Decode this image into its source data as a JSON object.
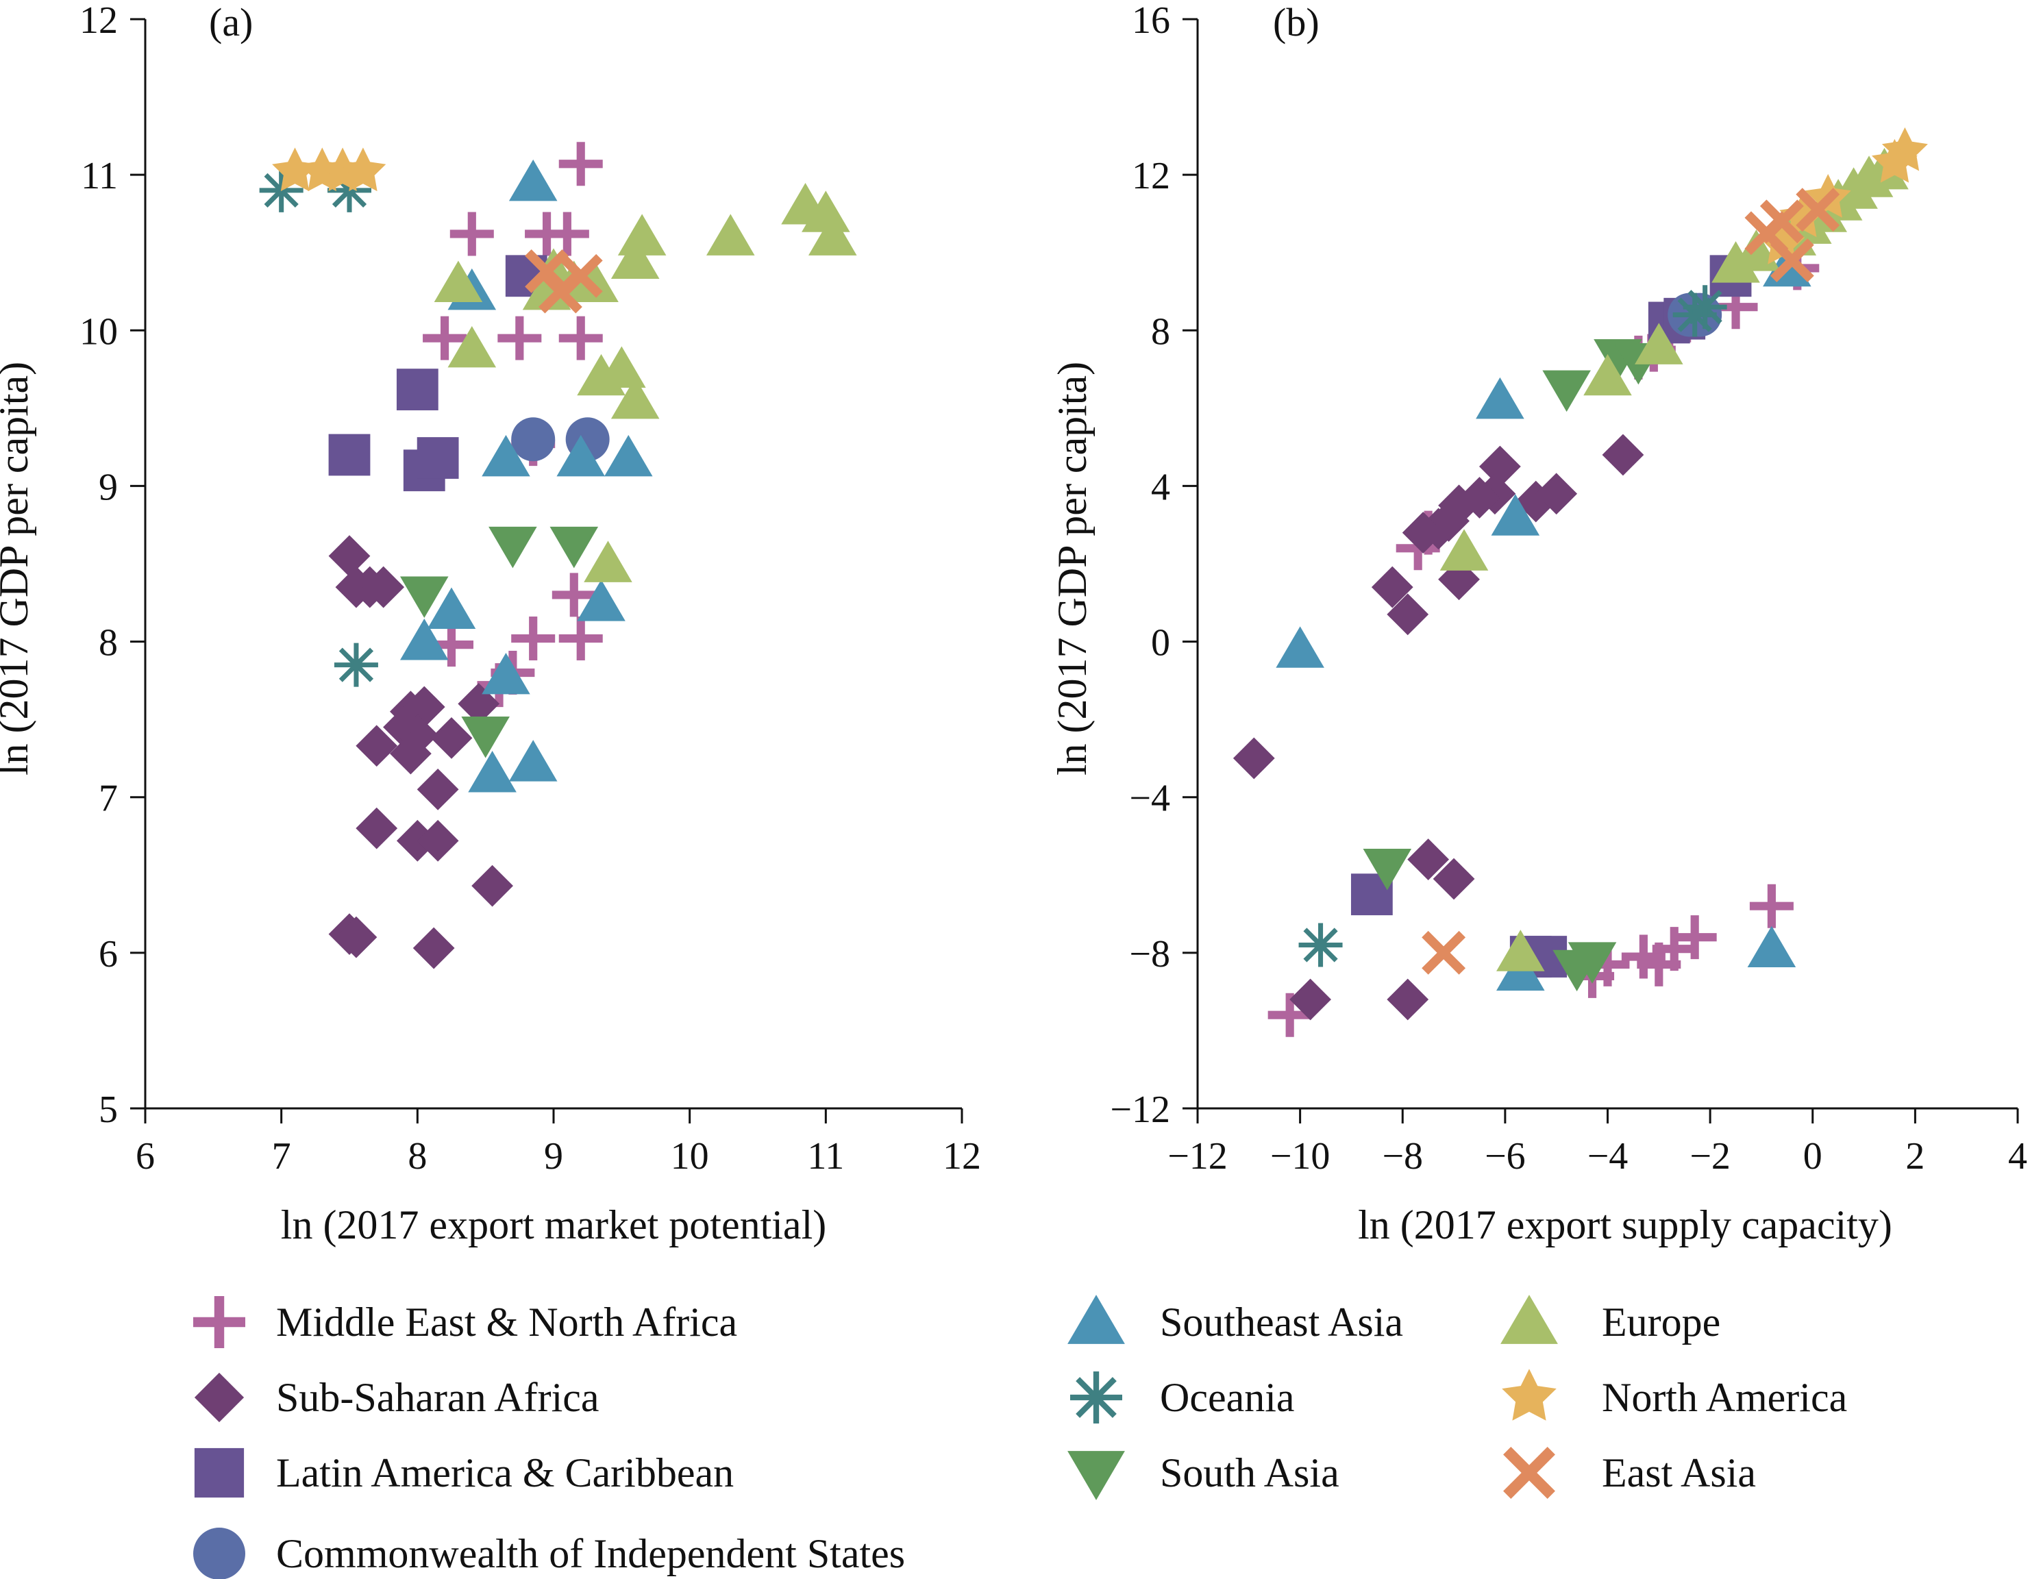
{
  "legend": [
    {
      "key": "mena",
      "label": "Middle East & North Africa",
      "marker": "plus",
      "color": "#b0659d"
    },
    {
      "key": "ssa",
      "label": "Sub-Saharan Africa",
      "marker": "diamond",
      "color": "#6f3f73"
    },
    {
      "key": "lac",
      "label": "Latin America & Caribbean",
      "marker": "square",
      "color": "#675393"
    },
    {
      "key": "cis",
      "label": "Commonwealth of Independent States",
      "marker": "circle",
      "color": "#5a6ea7"
    },
    {
      "key": "sea",
      "label": "Southeast Asia",
      "marker": "triangle-up",
      "color": "#4b93b5"
    },
    {
      "key": "oce",
      "label": "Oceania",
      "marker": "asterisk",
      "color": "#3f8082"
    },
    {
      "key": "sa",
      "label": "South Asia",
      "marker": "triangle-down",
      "color": "#5f9a5a"
    },
    {
      "key": "eur",
      "label": "Europe",
      "marker": "triangle-up",
      "color": "#a8bf6a"
    },
    {
      "key": "na",
      "label": "North America",
      "marker": "star",
      "color": "#e6b35c"
    },
    {
      "key": "ea",
      "label": "East Asia",
      "marker": "x",
      "color": "#e08a5e"
    }
  ],
  "chart_data": [
    {
      "type": "scatter",
      "panel_label": "(a)",
      "xlabel": "ln (2017 export market potential)",
      "ylabel": "ln (2017 GDP per capita)",
      "xlim": [
        6,
        12
      ],
      "ylim": [
        5,
        12
      ],
      "xticks": [
        6,
        7,
        8,
        9,
        10,
        11,
        12
      ],
      "yticks": [
        5,
        6,
        7,
        8,
        9,
        10,
        11,
        12
      ],
      "xtick_labels": [
        "6",
        "7",
        "8",
        "9",
        "10",
        "11",
        "12"
      ],
      "ytick_labels": [
        "5",
        "6",
        "7",
        "8",
        "9",
        "10",
        "11",
        "12"
      ],
      "series": [
        {
          "key": "mena",
          "points": [
            [
              9.2,
              11.07
            ],
            [
              8.4,
              10.62
            ],
            [
              8.95,
              10.62
            ],
            [
              9.1,
              10.62
            ],
            [
              8.2,
              9.95
            ],
            [
              8.75,
              9.95
            ],
            [
              9.2,
              9.95
            ],
            [
              8.85,
              9.27
            ],
            [
              9.15,
              8.3
            ],
            [
              8.85,
              8.02
            ],
            [
              9.2,
              8.02
            ],
            [
              8.25,
              7.98
            ],
            [
              8.7,
              7.8
            ],
            [
              8.6,
              7.72
            ]
          ]
        },
        {
          "key": "ssa",
          "points": [
            [
              7.5,
              8.55
            ],
            [
              7.55,
              8.35
            ],
            [
              7.65,
              8.35
            ],
            [
              7.75,
              8.35
            ],
            [
              7.95,
              7.55
            ],
            [
              8.05,
              7.58
            ],
            [
              7.9,
              7.45
            ],
            [
              8.0,
              7.4
            ],
            [
              7.7,
              7.33
            ],
            [
              7.95,
              7.28
            ],
            [
              8.25,
              7.38
            ],
            [
              8.45,
              7.6
            ],
            [
              8.15,
              7.05
            ],
            [
              7.7,
              6.8
            ],
            [
              8.0,
              6.72
            ],
            [
              8.15,
              6.72
            ],
            [
              8.55,
              6.43
            ],
            [
              7.5,
              6.12
            ],
            [
              7.55,
              6.1
            ],
            [
              8.12,
              6.03
            ]
          ]
        },
        {
          "key": "lac",
          "points": [
            [
              8.8,
              10.35
            ],
            [
              8.0,
              9.62
            ],
            [
              7.5,
              9.2
            ],
            [
              8.05,
              9.1
            ],
            [
              8.15,
              9.18
            ]
          ]
        },
        {
          "key": "cis",
          "points": [
            [
              8.85,
              9.3
            ],
            [
              9.25,
              9.3
            ]
          ]
        },
        {
          "key": "sea",
          "points": [
            [
              8.85,
              10.95
            ],
            [
              8.4,
              10.25
            ],
            [
              8.65,
              9.18
            ],
            [
              9.2,
              9.18
            ],
            [
              9.55,
              9.18
            ],
            [
              8.25,
              8.2
            ],
            [
              8.05,
              8.0
            ],
            [
              9.35,
              8.25
            ],
            [
              8.65,
              7.78
            ],
            [
              8.55,
              7.15
            ],
            [
              8.85,
              7.22
            ]
          ]
        },
        {
          "key": "oce",
          "points": [
            [
              7.0,
              10.9
            ],
            [
              7.5,
              10.9
            ],
            [
              7.55,
              7.85
            ]
          ]
        },
        {
          "key": "sa",
          "points": [
            [
              8.05,
              8.3
            ],
            [
              8.7,
              8.62
            ],
            [
              9.15,
              8.62
            ],
            [
              8.5,
              7.4
            ]
          ]
        },
        {
          "key": "eur",
          "points": [
            [
              10.85,
              10.8
            ],
            [
              11.0,
              10.75
            ],
            [
              11.05,
              10.6
            ],
            [
              10.3,
              10.6
            ],
            [
              9.65,
              10.6
            ],
            [
              9.6,
              10.45
            ],
            [
              8.3,
              10.3
            ],
            [
              9.0,
              10.38
            ],
            [
              9.05,
              10.3
            ],
            [
              9.15,
              10.3
            ],
            [
              9.3,
              10.3
            ],
            [
              8.95,
              10.25
            ],
            [
              8.4,
              9.88
            ],
            [
              9.35,
              9.7
            ],
            [
              9.5,
              9.75
            ],
            [
              9.6,
              9.55
            ],
            [
              9.4,
              8.5
            ]
          ]
        },
        {
          "key": "na",
          "points": [
            [
              7.1,
              11.02
            ],
            [
              7.3,
              11.02
            ],
            [
              7.45,
              11.02
            ],
            [
              7.6,
              11.02
            ]
          ]
        },
        {
          "key": "ea",
          "points": [
            [
              8.95,
              10.38
            ],
            [
              9.2,
              10.35
            ],
            [
              9.05,
              10.25
            ]
          ]
        }
      ]
    },
    {
      "type": "scatter",
      "panel_label": "(b)",
      "xlabel": "ln (2017 export supply capacity)",
      "ylabel": "ln (2017 GDP per capita)",
      "xlim": [
        -12,
        4
      ],
      "ylim": [
        -12,
        16
      ],
      "xticks": [
        -12,
        -10,
        -8,
        -6,
        -4,
        -2,
        0,
        2,
        4
      ],
      "yticks": [
        -12,
        -8,
        -4,
        0,
        4,
        8,
        12,
        16
      ],
      "xtick_labels": [
        "−12",
        "−10",
        "−8",
        "−6",
        "−4",
        "−2",
        "0",
        "2",
        "4"
      ],
      "ytick_labels": [
        "−12",
        "−8",
        "−4",
        "0",
        "4",
        "8",
        "12",
        "16"
      ],
      "series": [
        {
          "key": "mena",
          "points": [
            [
              -0.5,
              10.5
            ],
            [
              -0.3,
              9.6
            ],
            [
              -1.5,
              8.6
            ],
            [
              -2.8,
              7.8
            ],
            [
              -3.1,
              7.5
            ],
            [
              -3.4,
              7.3
            ],
            [
              -7.7,
              2.4
            ],
            [
              -7.5,
              2.8
            ],
            [
              -0.8,
              -6.8
            ],
            [
              -10.2,
              -9.6
            ],
            [
              -4.3,
              -8.6
            ],
            [
              -4.0,
              -8.3
            ],
            [
              -3.3,
              -8.1
            ],
            [
              -3.0,
              -8.3
            ],
            [
              -2.7,
              -7.9
            ],
            [
              -2.3,
              -7.6
            ]
          ]
        },
        {
          "key": "ssa",
          "points": [
            [
              -6.1,
              4.5
            ],
            [
              -6.2,
              3.8
            ],
            [
              -6.5,
              3.7
            ],
            [
              -6.9,
              3.5
            ],
            [
              -7.1,
              3.1
            ],
            [
              -7.3,
              2.9
            ],
            [
              -7.6,
              2.8
            ],
            [
              -5.4,
              3.6
            ],
            [
              -5.0,
              3.8
            ],
            [
              -3.7,
              4.8
            ],
            [
              -8.2,
              1.4
            ],
            [
              -6.9,
              1.6
            ],
            [
              -7.9,
              0.7
            ],
            [
              -10.9,
              -3.0
            ],
            [
              -7.5,
              -5.6
            ],
            [
              -7.0,
              -6.1
            ],
            [
              -7.9,
              -9.2
            ],
            [
              -9.8,
              -9.2
            ]
          ]
        },
        {
          "key": "lac",
          "points": [
            [
              -1.6,
              9.4
            ],
            [
              -2.8,
              8.2
            ],
            [
              -2.5,
              8.3
            ],
            [
              -8.6,
              -6.5
            ],
            [
              -5.5,
              -8.1
            ],
            [
              -5.2,
              -8.1
            ]
          ]
        },
        {
          "key": "cis",
          "points": [
            [
              -2.4,
              8.4
            ],
            [
              -2.2,
              8.4
            ]
          ]
        },
        {
          "key": "sea",
          "points": [
            [
              -0.5,
              9.6
            ],
            [
              -6.1,
              6.2
            ],
            [
              -5.8,
              3.2
            ],
            [
              -10.0,
              -0.2
            ],
            [
              -5.7,
              -8.5
            ],
            [
              -0.8,
              -7.9
            ]
          ]
        },
        {
          "key": "oce",
          "points": [
            [
              -2.3,
              8.4
            ],
            [
              -2.1,
              8.6
            ],
            [
              -9.6,
              -7.8
            ]
          ]
        },
        {
          "key": "sa",
          "points": [
            [
              -4.8,
              6.5
            ],
            [
              -3.8,
              7.3
            ],
            [
              -3.4,
              7.2
            ],
            [
              -8.3,
              -5.8
            ],
            [
              -4.6,
              -8.4
            ],
            [
              -4.3,
              -8.2
            ]
          ]
        },
        {
          "key": "eur",
          "points": [
            [
              1.4,
              12.1
            ],
            [
              1.1,
              11.9
            ],
            [
              0.8,
              11.6
            ],
            [
              0.5,
              11.3
            ],
            [
              0.2,
              11.0
            ],
            [
              -0.1,
              10.7
            ],
            [
              -0.4,
              10.4
            ],
            [
              -1.1,
              10.0
            ],
            [
              -1.5,
              9.7
            ],
            [
              -3.0,
              7.6
            ],
            [
              -4.0,
              6.8
            ],
            [
              -6.8,
              2.3
            ],
            [
              -5.7,
              -8.0
            ]
          ]
        },
        {
          "key": "na",
          "points": [
            [
              1.8,
              12.6
            ],
            [
              1.6,
              12.3
            ],
            [
              0.3,
              11.4
            ],
            [
              -0.2,
              10.9
            ],
            [
              -0.6,
              10.2
            ]
          ]
        },
        {
          "key": "ea",
          "points": [
            [
              0.1,
              11.1
            ],
            [
              -0.6,
              10.8
            ],
            [
              -0.9,
              10.5
            ],
            [
              -0.4,
              9.8
            ],
            [
              -7.2,
              -8.0
            ]
          ]
        }
      ]
    }
  ]
}
